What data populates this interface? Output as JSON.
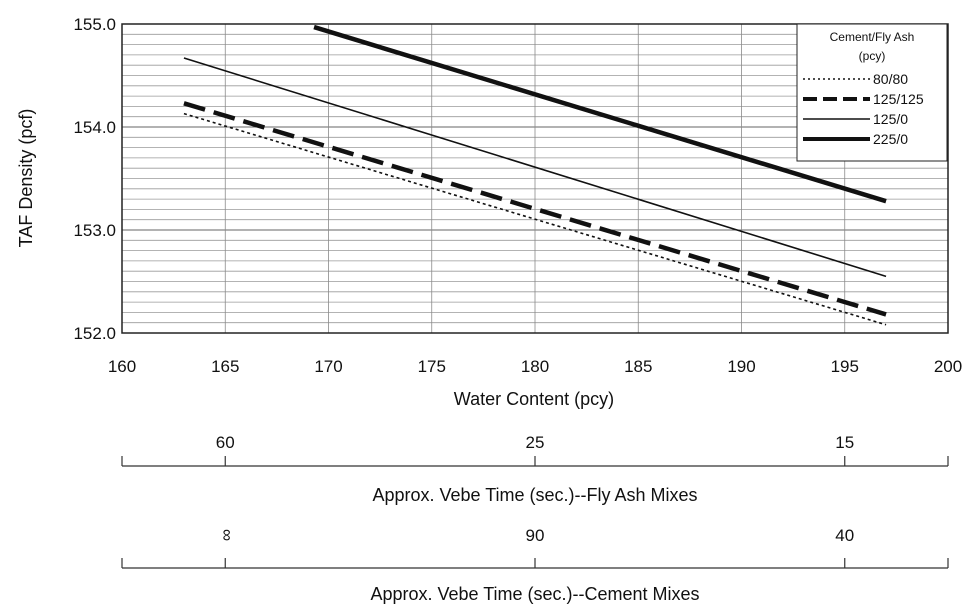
{
  "chart_data": {
    "type": "line",
    "ylabel": "TAF Density (pcf)",
    "xlabel": "Water Content (pcy)",
    "xlim": [
      160,
      200
    ],
    "ylim": [
      152.0,
      155.0
    ],
    "x_ticks": [
      160,
      165,
      170,
      175,
      180,
      185,
      190,
      195,
      200
    ],
    "x_tick_labels": [
      "160",
      "165",
      "170",
      "175",
      "180",
      "185",
      "190",
      "195",
      "200"
    ],
    "y_ticks": [
      152.0,
      153.0,
      154.0,
      155.0
    ],
    "y_tick_labels": [
      "152.0",
      "153.0",
      "154.0",
      "155.0"
    ],
    "y_minor_step": 0.1,
    "grid": "on",
    "legend": {
      "title_line1": "Cement/Fly Ash",
      "title_line2": "(pcy)",
      "placement": "top-right"
    },
    "series": [
      {
        "name": "80/80",
        "style": "dotted",
        "color": "#111111",
        "x": [
          163,
          197
        ],
        "y": [
          154.13,
          152.08
        ]
      },
      {
        "name": "125/125",
        "style": "long-dashed",
        "color": "#111111",
        "x": [
          163,
          197
        ],
        "y": [
          154.23,
          152.18
        ]
      },
      {
        "name": "125/0",
        "style": "thin-solid",
        "color": "#111111",
        "x": [
          163,
          197
        ],
        "y": [
          154.67,
          152.55
        ]
      },
      {
        "name": "225/0",
        "style": "thick-solid",
        "color": "#111111",
        "x": [
          169.3,
          197
        ],
        "y": [
          154.97,
          153.28
        ]
      }
    ],
    "secondary_axes": [
      {
        "title": "Approx. Vebe Time (sec.)--Fly Ash Mixes",
        "ticks": [
          {
            "at": 165,
            "label": "60"
          },
          {
            "at": 180,
            "label": "25"
          },
          {
            "at": 195,
            "label": "15"
          }
        ]
      },
      {
        "title": "Approx. Vebe Time (sec.)--Cement Mixes",
        "ticks": [
          {
            "at": 165,
            "label": "∞",
            "rotated": true
          },
          {
            "at": 180,
            "label": "90"
          },
          {
            "at": 195,
            "label": "40"
          }
        ]
      }
    ]
  }
}
